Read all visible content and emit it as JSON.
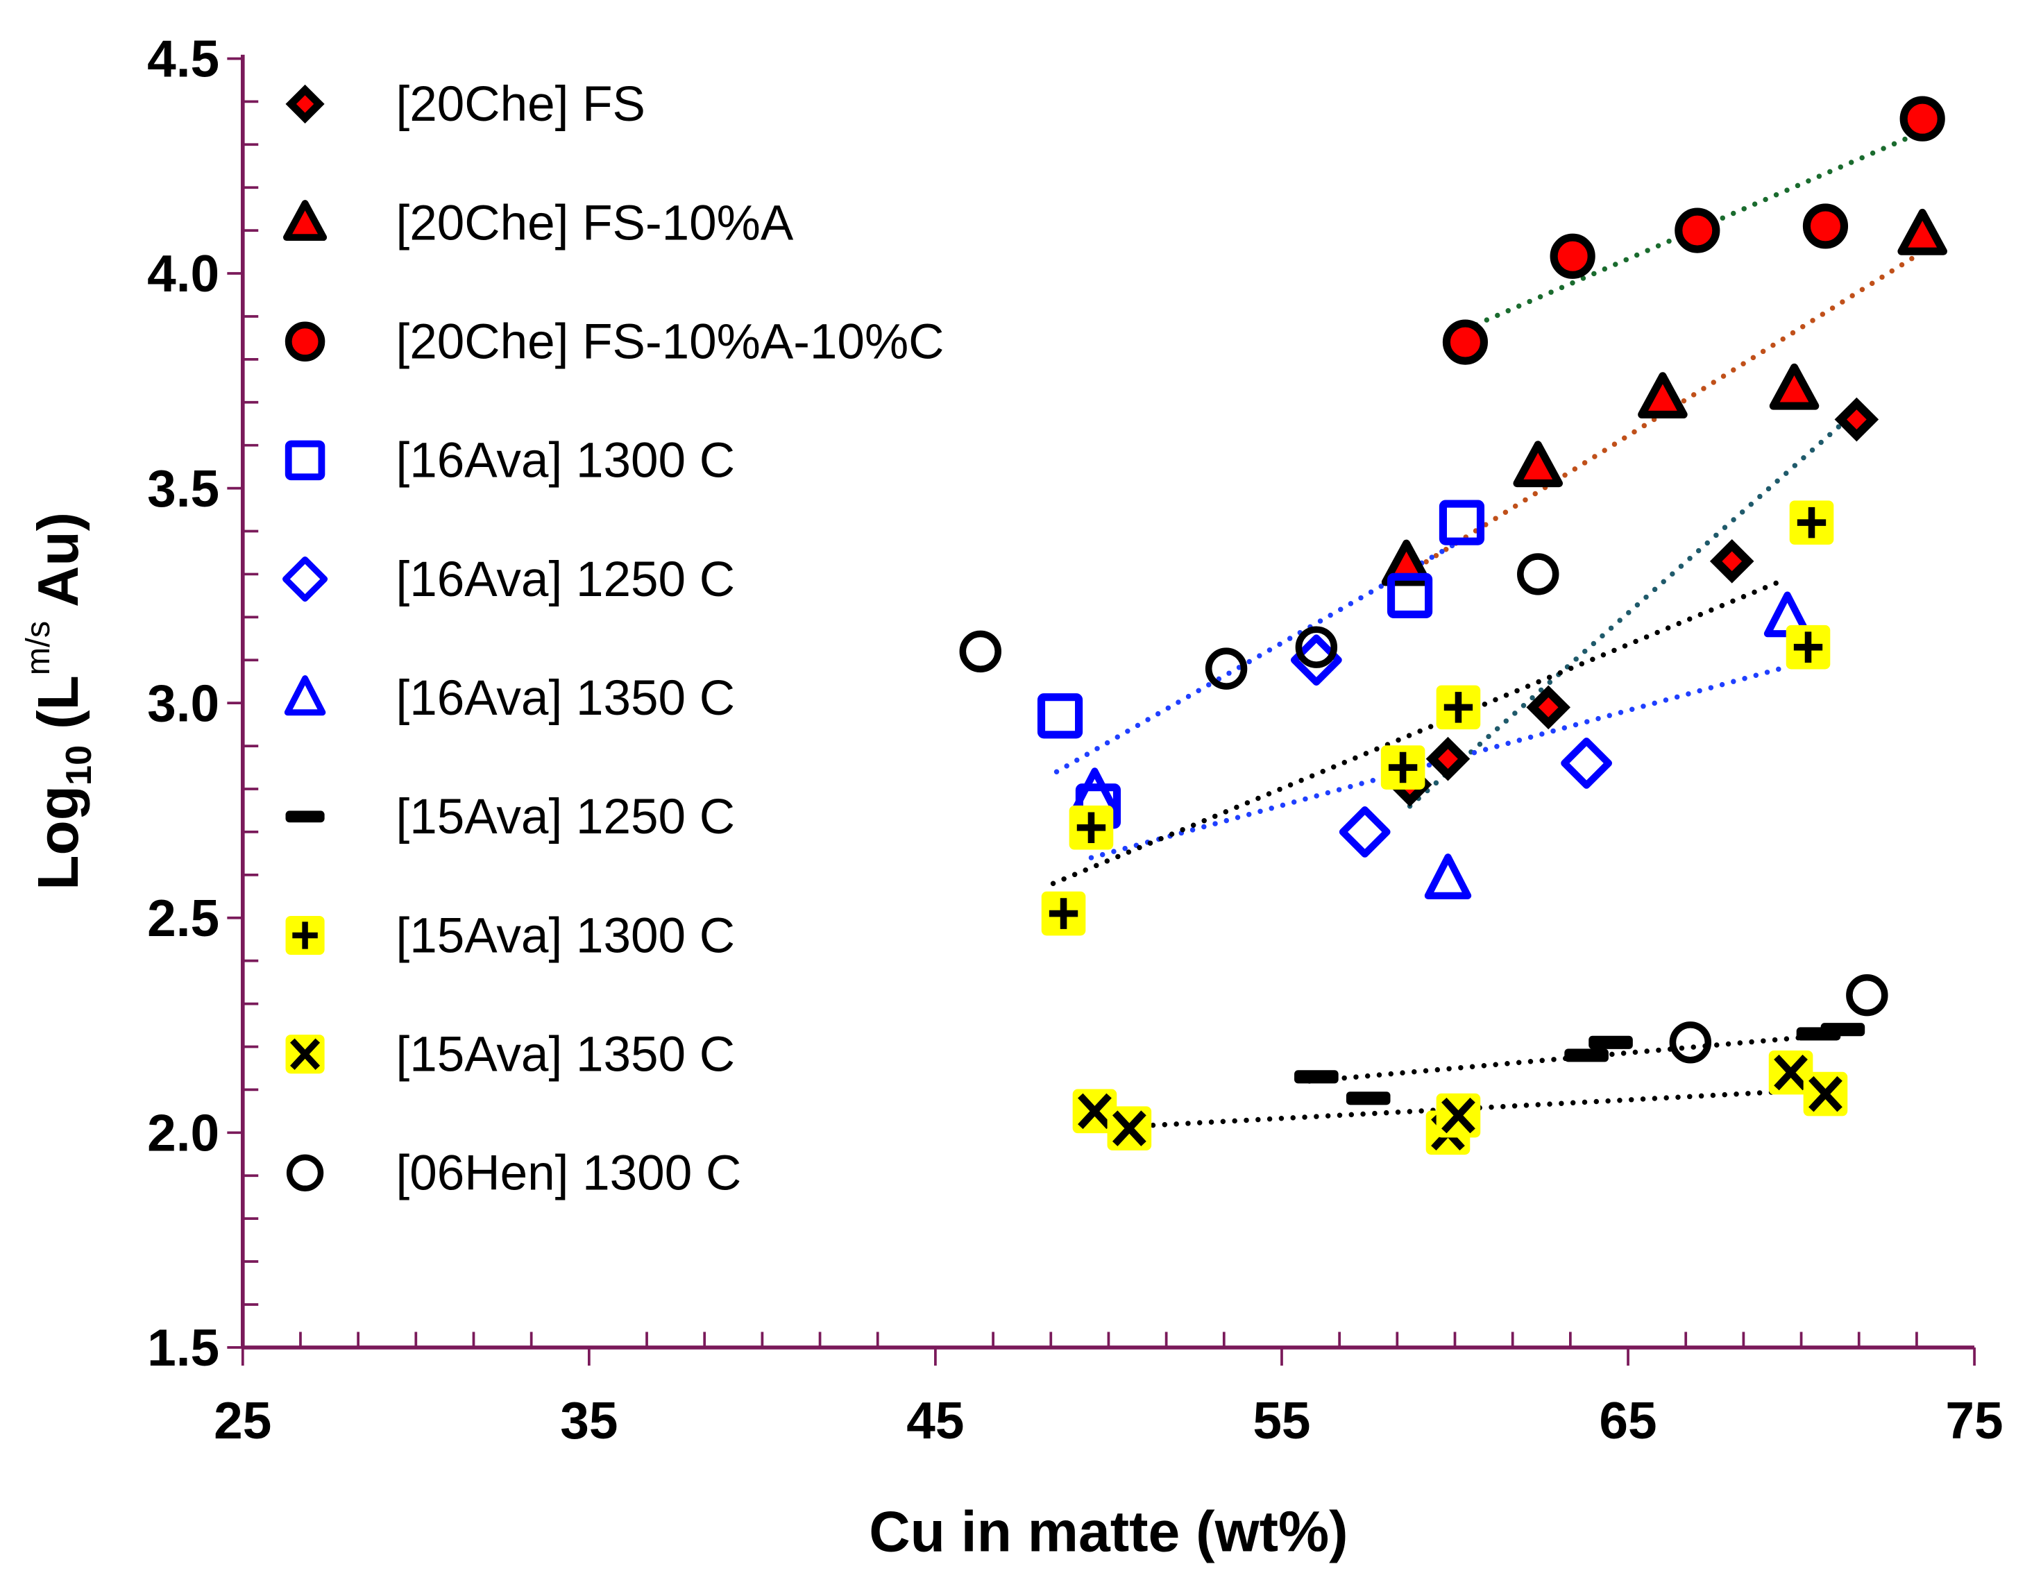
{
  "chart_data": {
    "type": "scatter",
    "xlabel": "Cu in matte (wt%)",
    "ylabel": {
      "main": "Log",
      "sub": "10",
      "paren_open": " (L",
      "sup": "m/s",
      "rest": " Au)"
    },
    "xlim": [
      25,
      75
    ],
    "ylim": [
      1.5,
      4.5
    ],
    "xticks": [
      "25",
      "35",
      "45",
      "55",
      "65",
      "75"
    ],
    "yticks": [
      "1.5",
      "2.0",
      "2.5",
      "3.0",
      "3.5",
      "4.0",
      "4.5"
    ],
    "grid": false,
    "legend_position": "top-left",
    "axis_color": "#7a1a5a",
    "series": [
      {
        "name": "[20Che] FS",
        "marker": "diamond-filled",
        "color": "#ff0000",
        "points": [
          [
            58.7,
            2.81
          ],
          [
            59.8,
            2.87
          ],
          [
            62.7,
            2.99
          ],
          [
            68.0,
            3.33
          ],
          [
            71.6,
            3.66
          ]
        ],
        "trend": {
          "from": [
            58.7,
            2.76
          ],
          "to": [
            71.6,
            3.68
          ],
          "color": "#1f5a6b"
        }
      },
      {
        "name": "[20Che] FS-10%A",
        "marker": "triangle-filled",
        "color": "#ff0000",
        "points": [
          [
            58.6,
            3.32
          ],
          [
            62.4,
            3.55
          ],
          [
            66.0,
            3.71
          ],
          [
            69.8,
            3.73
          ],
          [
            73.5,
            4.09
          ]
        ],
        "trend": {
          "from": [
            58.6,
            3.3
          ],
          "to": [
            73.5,
            4.05
          ],
          "color": "#c0501a"
        }
      },
      {
        "name": "[20Che] FS-10%A-10%C",
        "marker": "circle-filled",
        "color": "#ff0000",
        "points": [
          [
            60.3,
            3.84
          ],
          [
            63.4,
            4.04
          ],
          [
            67.0,
            4.1
          ],
          [
            70.7,
            4.11
          ],
          [
            73.5,
            4.36
          ]
        ],
        "trend": {
          "from": [
            60.3,
            3.87
          ],
          "to": [
            73.5,
            4.33
          ],
          "color": "#1a6b2e"
        }
      },
      {
        "name": "[16Ava] 1300 C",
        "marker": "square-open",
        "color": "#0000ff",
        "points": [
          [
            48.6,
            2.97
          ],
          [
            49.7,
            2.76
          ],
          [
            58.7,
            3.25
          ],
          [
            60.2,
            3.42
          ]
        ],
        "trend": {
          "from": [
            48.5,
            2.84
          ],
          "to": [
            60.0,
            3.37
          ],
          "color": "#1f3fff"
        }
      },
      {
        "name": "[16Ava] 1250 C",
        "marker": "diamond-open",
        "color": "#0000ff",
        "points": [
          [
            56.0,
            3.1
          ],
          [
            57.4,
            2.7
          ],
          [
            63.8,
            2.86
          ]
        ],
        "trend": {
          "from": [
            49.5,
            2.64
          ],
          "to": [
            70.3,
            3.1
          ],
          "color": "#1f3fff"
        }
      },
      {
        "name": "[16Ava] 1350 C",
        "marker": "triangle-open",
        "color": "#0000ff",
        "points": [
          [
            49.6,
            2.79
          ],
          [
            59.8,
            2.59
          ],
          [
            69.6,
            3.2
          ]
        ]
      },
      {
        "name": "[15Ava] 1250 C",
        "marker": "dash",
        "color": "#000000",
        "points": [
          [
            56.0,
            2.13
          ],
          [
            57.5,
            2.08
          ],
          [
            63.8,
            2.18
          ],
          [
            64.5,
            2.21
          ],
          [
            70.5,
            2.23
          ],
          [
            71.2,
            2.24
          ]
        ],
        "trend": {
          "from": [
            55.8,
            2.12
          ],
          "to": [
            71.2,
            2.23
          ],
          "color": "#000000"
        }
      },
      {
        "name": "[15Ava] 1300 C",
        "marker": "plus-yellow",
        "color": "#ffff00",
        "points": [
          [
            48.7,
            2.51
          ],
          [
            49.5,
            2.71
          ],
          [
            58.5,
            2.85
          ],
          [
            60.1,
            2.99
          ],
          [
            70.3,
            3.42
          ],
          [
            70.2,
            3.13
          ]
        ],
        "trend": {
          "from": [
            48.4,
            2.58
          ],
          "to": [
            69.3,
            3.28
          ],
          "color": "#000000"
        }
      },
      {
        "name": "[15Ava] 1350 C",
        "marker": "x-yellow",
        "color": "#ffff00",
        "points": [
          [
            49.6,
            2.05
          ],
          [
            50.6,
            2.01
          ],
          [
            59.8,
            2.0
          ],
          [
            60.1,
            2.04
          ],
          [
            69.7,
            2.14
          ],
          [
            70.7,
            2.09
          ]
        ],
        "trend": {
          "from": [
            49.6,
            2.01
          ],
          "to": [
            70.5,
            2.1
          ],
          "color": "#000000"
        }
      },
      {
        "name": "[06Hen] 1300 C",
        "marker": "circle-open",
        "color": "#000000",
        "points": [
          [
            46.3,
            3.12
          ],
          [
            53.4,
            3.08
          ],
          [
            56.0,
            3.13
          ],
          [
            62.4,
            3.3
          ],
          [
            66.8,
            2.21
          ],
          [
            71.9,
            2.32
          ]
        ]
      }
    ]
  }
}
